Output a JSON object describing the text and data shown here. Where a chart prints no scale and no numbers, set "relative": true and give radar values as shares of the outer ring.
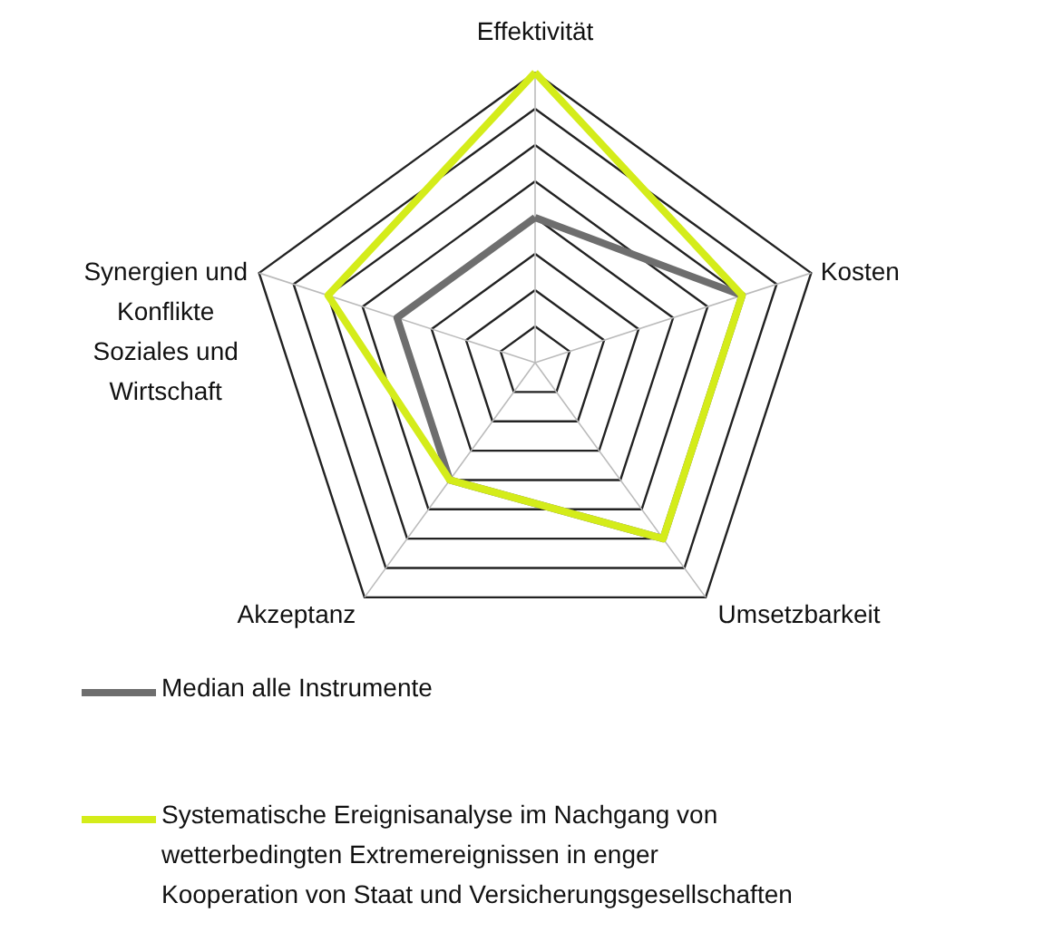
{
  "chart_data": {
    "type": "radar",
    "relative": true,
    "legend": "bottom",
    "categories": [
      "Effektivität",
      "Kosten",
      "Umsetzbarkeit",
      "Akzeptanz",
      "Synergien und Konflikte Soziales und Wirtschaft"
    ],
    "series": [
      {
        "name": "Median alle Instrumente",
        "color": "#6e6e6e",
        "values": [
          0.5,
          0.75,
          0.75,
          0.5,
          0.5
        ]
      },
      {
        "name": "Systematische Ereignisanalyse im Nachgang von wetterbedingten Extremereignissen in enger Kooperation von Staat und Versicherungsgesellschaften",
        "color": "#d4ec1a",
        "values": [
          1.0,
          0.75,
          0.75,
          0.5,
          0.75
        ]
      }
    ]
  }
}
